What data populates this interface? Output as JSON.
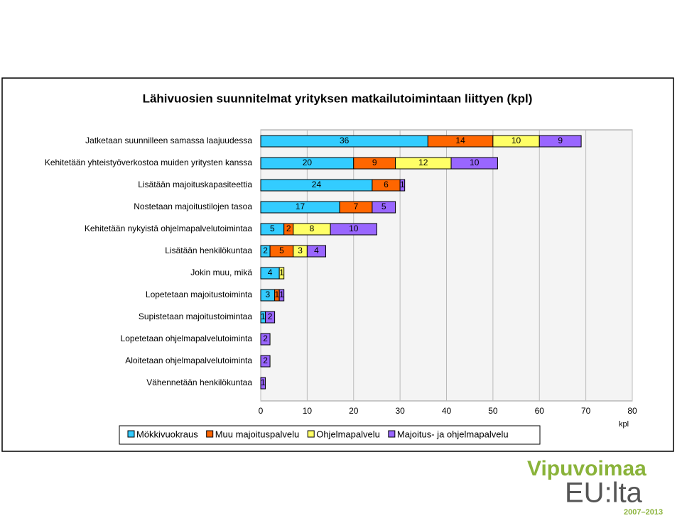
{
  "chart_data": {
    "type": "stacked-barh",
    "title": "Lähivuosien suunnitelmat yrityksen matkailutoimintaan liittyen (kpl)",
    "categories": [
      "Jatketaan suunnilleen samassa laajuudessa",
      "Kehitetään yhteistyöverkostoa muiden yritysten kanssa",
      "Lisätään majoituskapasiteettia",
      "Nostetaan majoitustilojen tasoa",
      "Kehitetään nykyistä ohjelmapalvelutoimintaa",
      "Lisätään henkilökuntaa",
      "Jokin muu, mikä",
      "Lopetetaan majoitustoiminta",
      "Supistetaan majoitustoimintaa",
      "Lopetetaan ohjelmapalvelutoiminta",
      "Aloitetaan ohjelmapalvelutoiminta",
      "Vähennetään henkilökuntaa"
    ],
    "series": [
      {
        "name": "Mökkivuokraus",
        "color": "#33ccff",
        "values": [
          36,
          20,
          24,
          17,
          5,
          2,
          4,
          3,
          1,
          null,
          null,
          null
        ]
      },
      {
        "name": "Muu majoituspalvelu",
        "color": "#ff6600",
        "values": [
          14,
          9,
          6,
          7,
          2,
          5,
          null,
          1,
          null,
          null,
          null,
          null
        ]
      },
      {
        "name": "Ohjelmapalvelu",
        "color": "#ffff66",
        "values": [
          10,
          12,
          null,
          null,
          8,
          3,
          1,
          null,
          null,
          null,
          null,
          null
        ]
      },
      {
        "name": "Majoitus- ja ohjelmapalvelu",
        "color": "#9966ff",
        "values": [
          9,
          10,
          1,
          5,
          10,
          4,
          null,
          1,
          2,
          2,
          2,
          1
        ]
      }
    ],
    "xlim": [
      0,
      80
    ],
    "xticks": [
      0,
      10,
      20,
      30,
      40,
      50,
      60,
      70,
      80
    ],
    "xlabel": "kpl",
    "legend": "bottom"
  },
  "logo": {
    "name": "Vipuvoimaa",
    "sub": "EU:lta",
    "years": "2007–2013"
  }
}
